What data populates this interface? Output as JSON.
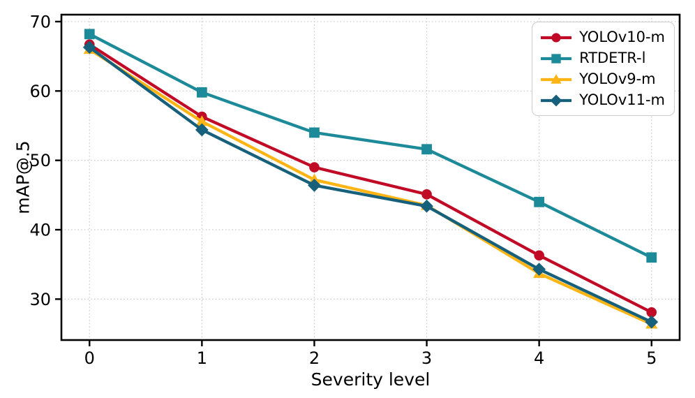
{
  "figure": {
    "background": "#ffffff",
    "axis_color": "#000000",
    "grid_color": "#c6c6c6"
  },
  "chart_data": {
    "type": "line",
    "title": "",
    "xlabel": "Severity level",
    "ylabel": "mAP@.5",
    "x": [
      0,
      1,
      2,
      3,
      4,
      5
    ],
    "xtick_labels": [
      "0",
      "1",
      "2",
      "3",
      "4",
      "5"
    ],
    "yticks": [
      30,
      40,
      50,
      60,
      70
    ],
    "xlim": [
      -0.25,
      5.25
    ],
    "ylim": [
      24.1,
      71.0
    ],
    "grid": "dotted",
    "legend_position": "upper right",
    "series": [
      {
        "name": "YOLOv10-m",
        "marker": "circle",
        "color": "#c00a26",
        "values": [
          66.7,
          56.3,
          49.0,
          45.1,
          36.3,
          28.1
        ]
      },
      {
        "name": "RTDETR-l",
        "marker": "square",
        "color": "#1d8a99",
        "values": [
          68.2,
          59.8,
          54.0,
          51.6,
          44.0,
          36.0
        ]
      },
      {
        "name": "YOLOv9-m",
        "marker": "triangle",
        "color": "#fdb515",
        "values": [
          66.0,
          55.6,
          47.2,
          43.5,
          33.7,
          26.4
        ]
      },
      {
        "name": "YOLOv11-m",
        "marker": "diamond",
        "color": "#17607b",
        "values": [
          66.3,
          54.4,
          46.4,
          43.4,
          34.3,
          26.7
        ]
      }
    ]
  }
}
